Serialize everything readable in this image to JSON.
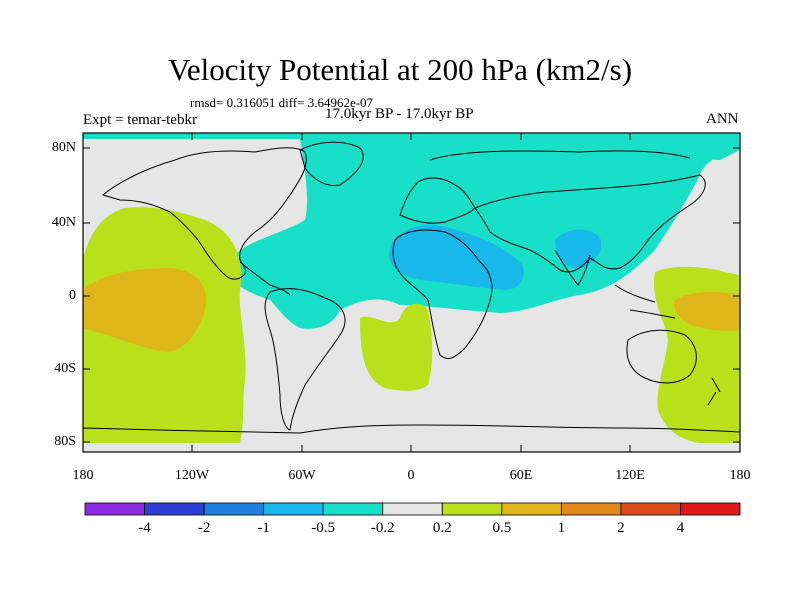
{
  "title": "Velocity Potential at 200 hPa (km2/s)",
  "stats": "rmsd= 0.316051  diff= 3.64962e-07",
  "expt": "Expt = temar-tebkr",
  "period": "17.0kyr BP - 17.0kyr BP",
  "season": "ANN",
  "y_axis_labels": [
    "80N",
    "40N",
    "0",
    "40S",
    "80S"
  ],
  "x_axis_labels": [
    "180",
    "120W",
    "60W",
    "0",
    "60E",
    "120E",
    "180"
  ],
  "colorbar": {
    "labels": [
      "-4",
      "-2",
      "-1",
      "-0.5",
      "-0.2",
      "0.2",
      "0.5",
      "1",
      "2",
      "4"
    ],
    "colors": [
      "#8a2be2",
      "#2e3fd6",
      "#1e7fe0",
      "#19b8ea",
      "#18e0c8",
      "#e6e6e6",
      "#b9e01a",
      "#e0b71a",
      "#e08a1a",
      "#e04a1a",
      "#e0181a"
    ]
  },
  "contour_colors": {
    "neg_0p5_to_neg_0p2": "#18e0c8",
    "neg_1_to_neg_0p5": "#19b8ea",
    "neg_0p2_to_0p2": "#e6e6e6",
    "0p2_to_0p5": "#b9e01a",
    "0p5_to_1": "#e0b71a",
    "1_to_2": "#e08a1a"
  }
}
